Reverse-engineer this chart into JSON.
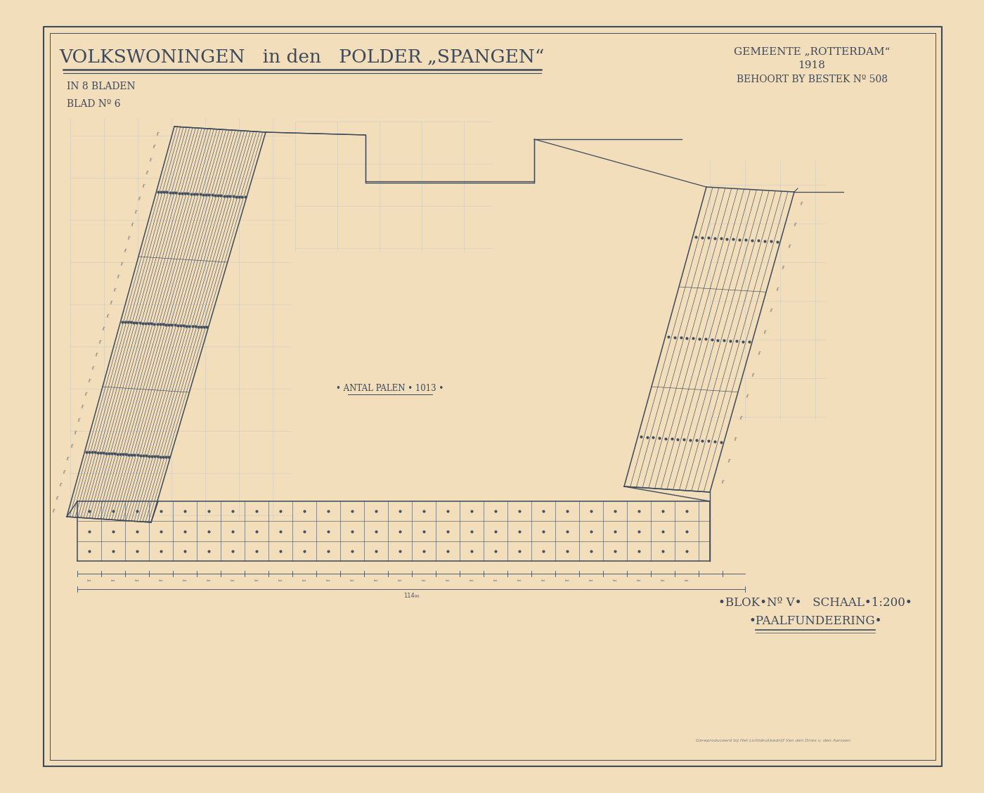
{
  "bg_color": "#f2debb",
  "line_color": "#3d4a5c",
  "blue_line_color": "#a0b8cc",
  "dot_color": "#3d4a5c",
  "title_main": "VOLKSWONINGEN   in den   POLDER „SPANGEN“",
  "subtitle1": "IN 8 BLADEN",
  "subtitle2": "BLAD Nº 6",
  "top_right1": "GEMEENTE „ROTTERDAM“",
  "top_right2": "1918",
  "top_right3": "BEHOORT BY BESTEK Nº 508",
  "bottom_right1": "•BLOK•Nº V•",
  "bottom_right2": "SCHAAL•1:200•",
  "bottom_right3": "•PAALFUNDEERING•",
  "center_label": "• ANTAL PALEN • 1013 •",
  "printer_text": "Gereproduceerd bij Het Lichtdrukbedrijf Van den Dries v. den Aarssen"
}
